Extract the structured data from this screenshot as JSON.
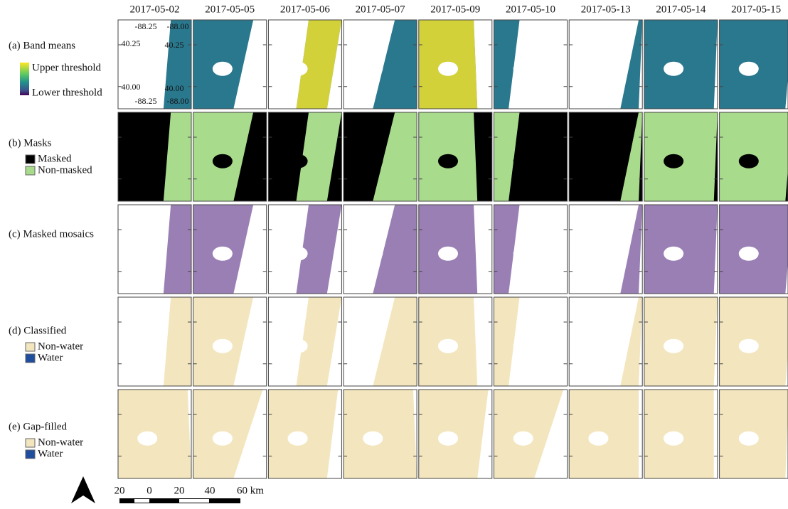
{
  "columns": [
    "2017-05-02",
    "2017-05-05",
    "2017-05-06",
    "2017-05-07",
    "2017-05-09",
    "2017-05-10",
    "2017-05-13",
    "2017-05-14",
    "2017-05-15"
  ],
  "rows": [
    {
      "label": "(a) Band means",
      "legend": [
        "Upper threshold",
        "Lower threshold"
      ]
    },
    {
      "label": "(b) Masks",
      "legend": [
        "Masked",
        "Non-masked"
      ]
    },
    {
      "label": "(c) Masked mosaics",
      "legend": []
    },
    {
      "label": "(d) Classified",
      "legend": [
        "Non-water",
        "Water"
      ]
    },
    {
      "label": "(e) Gap-filled",
      "legend": [
        "Non-water",
        "Water"
      ]
    }
  ],
  "coordinates": {
    "lon": [
      "-88.25",
      "-88.00"
    ],
    "lat": [
      "40.25",
      "40.00"
    ]
  },
  "scale_bar": [
    "20",
    "0",
    "20",
    "40",
    "60 km"
  ]
}
